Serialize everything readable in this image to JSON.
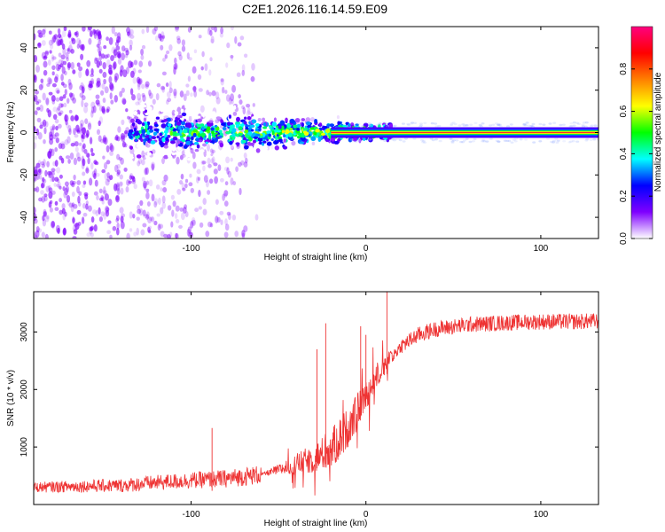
{
  "title": "C2E1.2026.116.14.59.E09",
  "chart_data": [
    {
      "type": "heatmap",
      "name": "spectrogram",
      "xlabel": "Height of straight line (km)",
      "ylabel": "Frequency (Hz)",
      "xlim": [
        -190,
        133
      ],
      "ylim": [
        -50,
        50
      ],
      "xticks": [
        -100,
        0,
        100
      ],
      "yticks": [
        -40,
        -20,
        0,
        20,
        40
      ],
      "carrier_frequency_hz": 0,
      "colorbar": {
        "label": "Normalized spectral amplitude",
        "range": [
          0,
          1
        ],
        "ticks": [
          "0.0",
          "0.2",
          "0.4",
          "0.6",
          "0.8"
        ],
        "colors": [
          "#ffffff",
          "#7f00ff",
          "#0000ff",
          "#00ffff",
          "#00ff00",
          "#ffff00",
          "#ff8000",
          "#ff0000",
          "#ff0080"
        ]
      }
    },
    {
      "type": "line",
      "name": "snr",
      "xlabel": "Height of straight line (km)",
      "ylabel": "SNR (10 * v/v)",
      "xlim": [
        -190,
        133
      ],
      "ylim": [
        0,
        3700
      ],
      "xticks": [
        -100,
        0,
        100
      ],
      "yticks": [
        1000,
        2000,
        3000
      ],
      "color": "#ee3333",
      "envelope": {
        "x": [
          -190,
          -160,
          -140,
          -120,
          -100,
          -80,
          -60,
          -50,
          -40,
          -30,
          -20,
          -10,
          0,
          10,
          20,
          30,
          40,
          60,
          80,
          100,
          120,
          133
        ],
        "y": [
          300,
          320,
          330,
          380,
          420,
          450,
          520,
          600,
          700,
          800,
          950,
          1350,
          1900,
          2400,
          2750,
          2950,
          3050,
          3130,
          3160,
          3180,
          3180,
          3190
        ]
      },
      "spikes": [
        {
          "x": 12,
          "y": 3700
        },
        {
          "x": -23,
          "y": 3150
        },
        {
          "x": -28,
          "y": 2700
        },
        {
          "x": -3,
          "y": 3100
        },
        {
          "x": 0,
          "y": 2950
        },
        {
          "x": -88,
          "y": 1330
        }
      ]
    }
  ]
}
